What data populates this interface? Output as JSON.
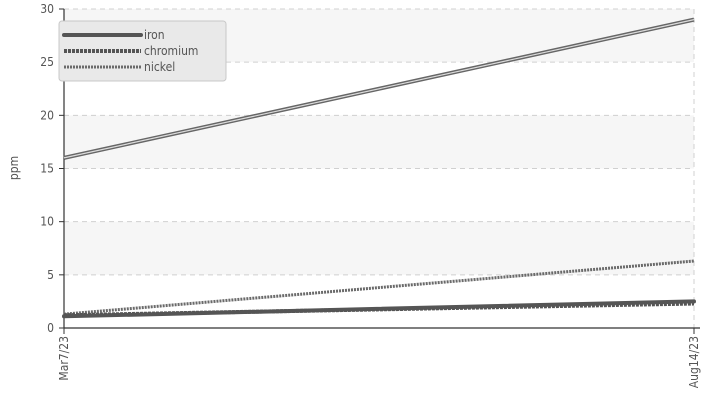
{
  "chart_data": {
    "type": "line",
    "x": [
      "Mar7/23",
      "Aug14/23"
    ],
    "xlabel": "",
    "ylabel": "ppm",
    "ylim": [
      0,
      30
    ],
    "yticks": [
      0,
      5,
      10,
      15,
      20,
      25,
      30
    ],
    "grid": true,
    "legend_position": "top-left",
    "series": [
      {
        "name": "iron",
        "values": [
          1.1,
          2.5
        ],
        "color": "#555555",
        "style": "solid"
      },
      {
        "name": "chromium",
        "values": [
          1.2,
          2.3
        ],
        "color": "#555555",
        "style": "dashed"
      },
      {
        "name": "nickel",
        "values": [
          1.3,
          6.3
        ],
        "color": "#6a6a6a",
        "style": "dotted"
      },
      {
        "name": "",
        "values": [
          16,
          29
        ],
        "color": "#666666",
        "style": "double"
      }
    ]
  }
}
